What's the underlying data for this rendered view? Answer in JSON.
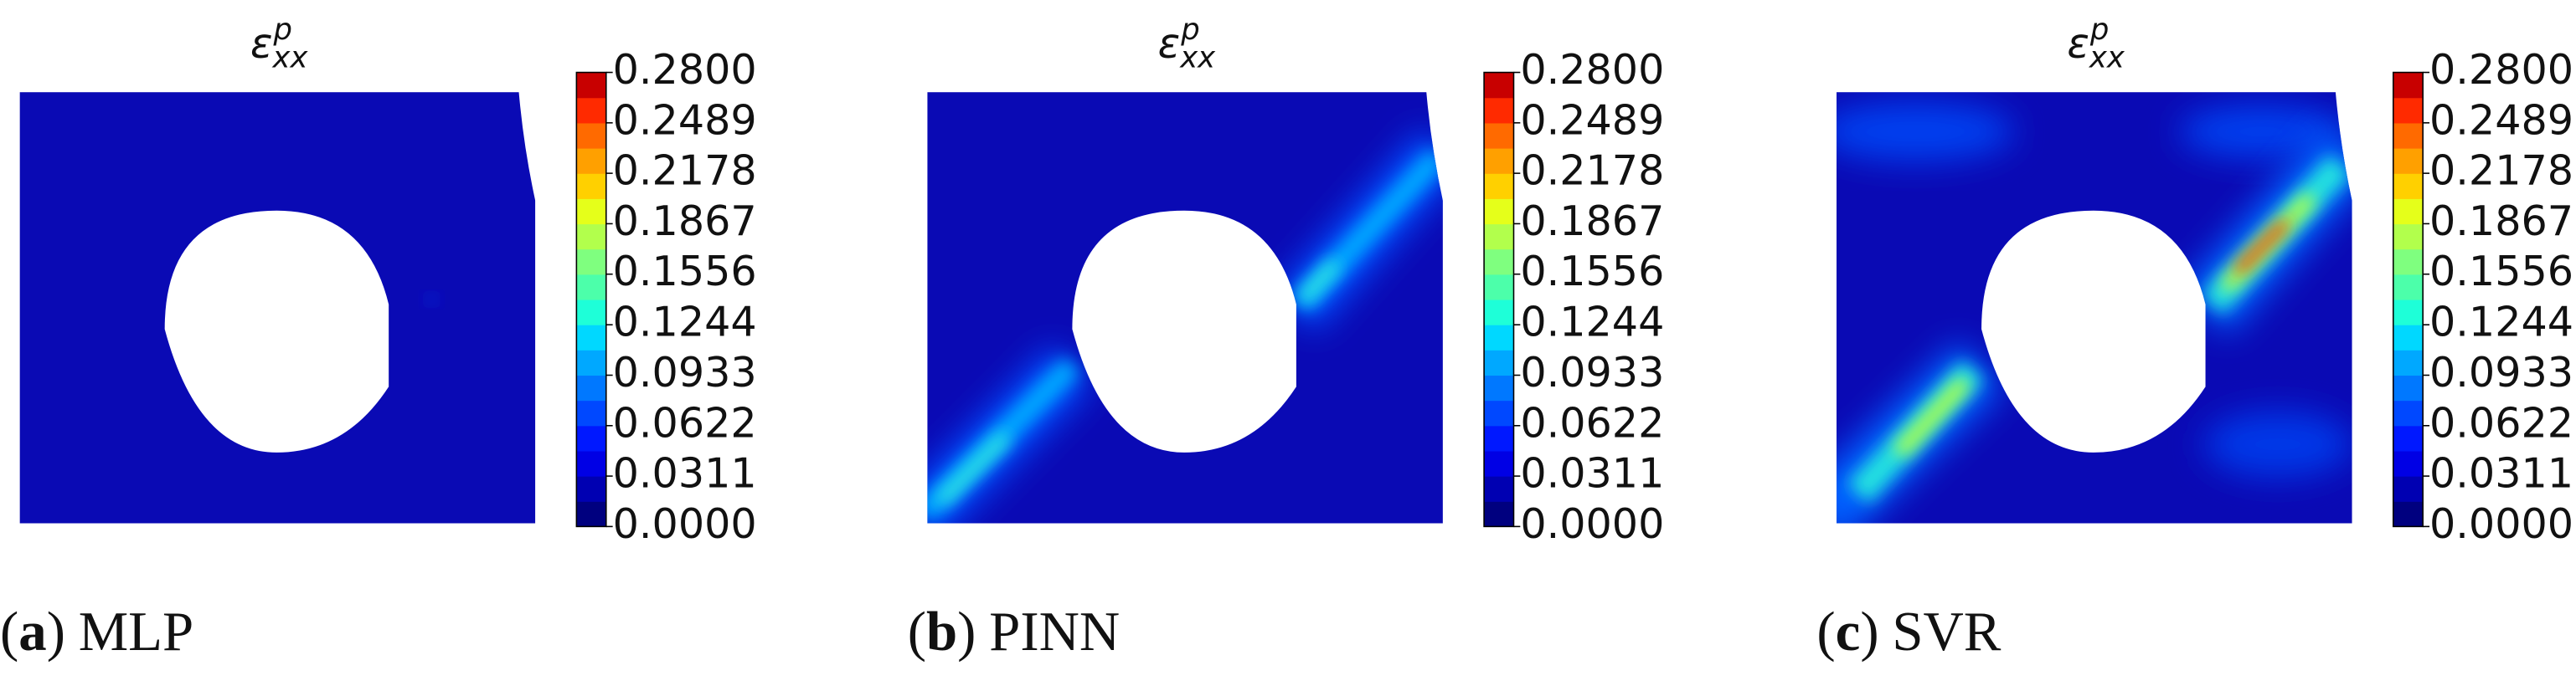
{
  "chart_data": [
    {
      "type": "contour",
      "title": {
        "symbol": "ε",
        "subscript": "xx",
        "superscript": "p"
      },
      "caption": {
        "open": "(",
        "letter": "a",
        "close": ")",
        "text": "MLP"
      },
      "clim": [
        0,
        0.28
      ],
      "cticks": [
        {
          "value": 0,
          "label": "0.0000"
        },
        {
          "value": 0.0311,
          "label": "0.0311"
        },
        {
          "value": 0.0622,
          "label": "0.0622"
        },
        {
          "value": 0.0933,
          "label": "0.0933"
        },
        {
          "value": 0.1244,
          "label": "0.1244"
        },
        {
          "value": 0.1556,
          "label": "0.1556"
        },
        {
          "value": 0.1867,
          "label": "0.1867"
        },
        {
          "value": 0.2178,
          "label": "0.2178"
        },
        {
          "value": 0.2489,
          "label": "0.2489"
        },
        {
          "value": 0.28,
          "label": "0.2800"
        }
      ],
      "colormap": [
        "#00007f",
        "#0000b2",
        "#0000e5",
        "#0018ff",
        "#0048ff",
        "#0078ff",
        "#00a8ff",
        "#00d8ff",
        "#1effd8",
        "#4cffaa",
        "#7fff7f",
        "#b2ff4c",
        "#e5ff1a",
        "#ffd000",
        "#ffa000",
        "#ff6a00",
        "#ff2a00",
        "#c80000"
      ]
    },
    {
      "type": "contour",
      "title": {
        "symbol": "ε",
        "subscript": "xx",
        "superscript": "p"
      },
      "caption": {
        "open": "(",
        "letter": "b",
        "close": ")",
        "text": "PINN"
      },
      "clim": [
        0,
        0.28
      ],
      "cticks": [
        {
          "value": 0,
          "label": "0.0000"
        },
        {
          "value": 0.0311,
          "label": "0.0311"
        },
        {
          "value": 0.0622,
          "label": "0.0622"
        },
        {
          "value": 0.0933,
          "label": "0.0933"
        },
        {
          "value": 0.1244,
          "label": "0.1244"
        },
        {
          "value": 0.1556,
          "label": "0.1556"
        },
        {
          "value": 0.1867,
          "label": "0.1867"
        },
        {
          "value": 0.2178,
          "label": "0.2178"
        },
        {
          "value": 0.2489,
          "label": "0.2489"
        },
        {
          "value": 0.28,
          "label": "0.2800"
        }
      ],
      "colormap": [
        "#00007f",
        "#0000b2",
        "#0000e5",
        "#0018ff",
        "#0048ff",
        "#0078ff",
        "#00a8ff",
        "#00d8ff",
        "#1effd8",
        "#4cffaa",
        "#7fff7f",
        "#b2ff4c",
        "#e5ff1a",
        "#ffd000",
        "#ffa000",
        "#ff6a00",
        "#ff2a00",
        "#c80000"
      ]
    },
    {
      "type": "contour",
      "title": {
        "symbol": "ε",
        "subscript": "xx",
        "superscript": "p"
      },
      "caption": {
        "open": "(",
        "letter": "c",
        "close": ")",
        "text": "SVR"
      },
      "clim": [
        0,
        0.28
      ],
      "cticks": [
        {
          "value": 0,
          "label": "0.0000"
        },
        {
          "value": 0.0311,
          "label": "0.0311"
        },
        {
          "value": 0.0622,
          "label": "0.0622"
        },
        {
          "value": 0.0933,
          "label": "0.0933"
        },
        {
          "value": 0.1244,
          "label": "0.1244"
        },
        {
          "value": 0.1556,
          "label": "0.1556"
        },
        {
          "value": 0.1867,
          "label": "0.1867"
        },
        {
          "value": 0.2178,
          "label": "0.2178"
        },
        {
          "value": 0.2489,
          "label": "0.2489"
        },
        {
          "value": 0.28,
          "label": "0.2800"
        }
      ],
      "colormap": [
        "#00007f",
        "#0000b2",
        "#0000e5",
        "#0018ff",
        "#0048ff",
        "#0078ff",
        "#00a8ff",
        "#00d8ff",
        "#1effd8",
        "#4cffaa",
        "#7fff7f",
        "#b2ff4c",
        "#e5ff1a",
        "#ffd000",
        "#ffa000",
        "#ff6a00",
        "#ff2a00",
        "#c80000"
      ]
    }
  ]
}
